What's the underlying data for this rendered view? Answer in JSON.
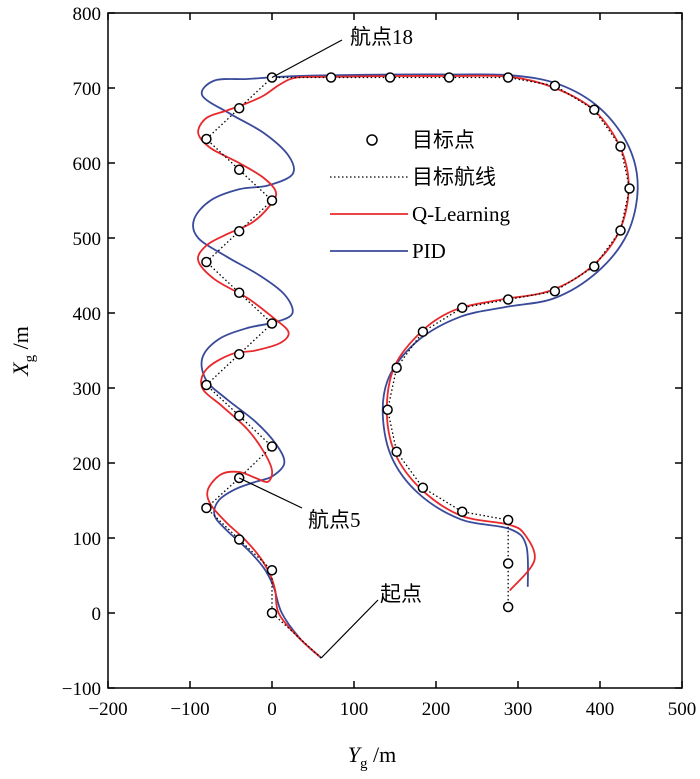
{
  "chart_data": {
    "type": "line",
    "xlabel": "Y",
    "xlabel_sub": "g",
    "xlabel_unit": " /m",
    "ylabel": "X",
    "ylabel_sub": "g",
    "ylabel_unit": " /m",
    "xlim": [
      -200,
      500
    ],
    "ylim": [
      -100,
      800
    ],
    "xticks": [
      -200,
      -100,
      0,
      100,
      200,
      300,
      400,
      500
    ],
    "yticks": [
      -100,
      0,
      100,
      200,
      300,
      400,
      500,
      600,
      700,
      800
    ],
    "grid": false,
    "legend": {
      "placement": "center-right",
      "entries": [
        {
          "label": "目标点",
          "style": "circle-marker",
          "color": "#000000"
        },
        {
          "label": "目标航线",
          "style": "dotted",
          "color": "#000000"
        },
        {
          "label": "Q-Learning",
          "style": "solid",
          "color": "#e8282b"
        },
        {
          "label": "PID",
          "style": "solid",
          "color": "#3a4a9a"
        }
      ]
    },
    "target_points": {
      "name": "目标点",
      "points": [
        [
          60,
          -60
        ],
        [
          0,
          0
        ],
        [
          0,
          57
        ],
        [
          -40,
          98
        ],
        [
          -80,
          140
        ],
        [
          -40,
          180
        ],
        [
          0,
          222
        ],
        [
          -40,
          263
        ],
        [
          -80,
          304
        ],
        [
          -40,
          345
        ],
        [
          0,
          386
        ],
        [
          -40,
          427
        ],
        [
          -80,
          468
        ],
        [
          -40,
          509
        ],
        [
          0,
          550
        ],
        [
          -40,
          591
        ],
        [
          -80,
          632
        ],
        [
          -40,
          673
        ],
        [
          0,
          714
        ],
        [
          72,
          714
        ],
        [
          144,
          714
        ],
        [
          216,
          714
        ],
        [
          288,
          714
        ],
        [
          345,
          703
        ],
        [
          393,
          671
        ],
        [
          425,
          622
        ],
        [
          436,
          566
        ],
        [
          425,
          510
        ],
        [
          393,
          462
        ],
        [
          345,
          429
        ],
        [
          288,
          418
        ],
        [
          232,
          407
        ],
        [
          184,
          375
        ],
        [
          152,
          327
        ],
        [
          141,
          271
        ],
        [
          152,
          215
        ],
        [
          184,
          167
        ],
        [
          232,
          135
        ],
        [
          288,
          124
        ],
        [
          288,
          66
        ],
        [
          288,
          8
        ]
      ]
    },
    "series": [
      {
        "name": "Q-Learning",
        "color": "#e8282b",
        "points": [
          [
            58,
            -58
          ],
          [
            30,
            -30
          ],
          [
            8,
            0
          ],
          [
            4,
            30
          ],
          [
            -2,
            50
          ],
          [
            -15,
            75
          ],
          [
            -35,
            100
          ],
          [
            -55,
            120
          ],
          [
            -75,
            145
          ],
          [
            -78,
            165
          ],
          [
            -62,
            185
          ],
          [
            -40,
            188
          ],
          [
            -20,
            180
          ],
          [
            -5,
            175
          ],
          [
            0,
            190
          ],
          [
            -10,
            215
          ],
          [
            -30,
            245
          ],
          [
            -60,
            275
          ],
          [
            -85,
            300
          ],
          [
            -80,
            325
          ],
          [
            -50,
            345
          ],
          [
            -20,
            350
          ],
          [
            10,
            360
          ],
          [
            20,
            375
          ],
          [
            0,
            395
          ],
          [
            -30,
            420
          ],
          [
            -70,
            445
          ],
          [
            -90,
            470
          ],
          [
            -80,
            490
          ],
          [
            -55,
            505
          ],
          [
            -25,
            520
          ],
          [
            -5,
            540
          ],
          [
            5,
            560
          ],
          [
            -10,
            580
          ],
          [
            -40,
            600
          ],
          [
            -75,
            620
          ],
          [
            -90,
            640
          ],
          [
            -80,
            660
          ],
          [
            -55,
            670
          ],
          [
            -30,
            680
          ],
          [
            -10,
            690
          ],
          [
            10,
            705
          ],
          [
            30,
            714
          ],
          [
            72,
            715
          ],
          [
            150,
            716
          ],
          [
            220,
            716
          ],
          [
            290,
            715
          ],
          [
            345,
            700
          ],
          [
            393,
            670
          ],
          [
            425,
            620
          ],
          [
            435,
            566
          ],
          [
            423,
            508
          ],
          [
            390,
            462
          ],
          [
            340,
            430
          ],
          [
            280,
            418
          ],
          [
            225,
            405
          ],
          [
            185,
            378
          ],
          [
            150,
            330
          ],
          [
            140,
            271
          ],
          [
            150,
            213
          ],
          [
            182,
            165
          ],
          [
            230,
            130
          ],
          [
            288,
            118
          ],
          [
            308,
            105
          ],
          [
            320,
            70
          ],
          [
            290,
            30
          ]
        ]
      },
      {
        "name": "PID",
        "color": "#3a4a9a",
        "points": [
          [
            60,
            -60
          ],
          [
            35,
            -35
          ],
          [
            12,
            0
          ],
          [
            2,
            35
          ],
          [
            -10,
            60
          ],
          [
            -30,
            85
          ],
          [
            -55,
            110
          ],
          [
            -70,
            130
          ],
          [
            -65,
            150
          ],
          [
            -45,
            165
          ],
          [
            -20,
            175
          ],
          [
            0,
            182
          ],
          [
            15,
            200
          ],
          [
            5,
            225
          ],
          [
            -20,
            255
          ],
          [
            -55,
            285
          ],
          [
            -80,
            310
          ],
          [
            -85,
            340
          ],
          [
            -65,
            365
          ],
          [
            -30,
            380
          ],
          [
            5,
            388
          ],
          [
            25,
            400
          ],
          [
            15,
            425
          ],
          [
            -15,
            450
          ],
          [
            -55,
            475
          ],
          [
            -90,
            500
          ],
          [
            -95,
            525
          ],
          [
            -75,
            550
          ],
          [
            -40,
            565
          ],
          [
            -5,
            570
          ],
          [
            25,
            585
          ],
          [
            20,
            610
          ],
          [
            -10,
            640
          ],
          [
            -50,
            665
          ],
          [
            -85,
            690
          ],
          [
            -70,
            710
          ],
          [
            -30,
            712
          ],
          [
            10,
            715
          ],
          [
            72,
            717
          ],
          [
            150,
            718
          ],
          [
            220,
            718
          ],
          [
            292,
            717
          ],
          [
            350,
            705
          ],
          [
            400,
            673
          ],
          [
            435,
            622
          ],
          [
            446,
            566
          ],
          [
            433,
            505
          ],
          [
            397,
            455
          ],
          [
            345,
            420
          ],
          [
            285,
            408
          ],
          [
            230,
            395
          ],
          [
            180,
            365
          ],
          [
            145,
            320
          ],
          [
            135,
            271
          ],
          [
            145,
            210
          ],
          [
            178,
            160
          ],
          [
            230,
            125
          ],
          [
            290,
            112
          ],
          [
            310,
            90
          ],
          [
            312,
            35
          ]
        ]
      }
    ],
    "annotations": [
      {
        "text": "航点18",
        "target": [
          0,
          714
        ]
      },
      {
        "text": "航点5",
        "target": [
          -40,
          180
        ]
      },
      {
        "text": "起点",
        "target": [
          60,
          -60
        ]
      }
    ]
  },
  "colors": {
    "q_learning": "#e8282b",
    "pid": "#3a4a9a",
    "target": "#000000"
  }
}
